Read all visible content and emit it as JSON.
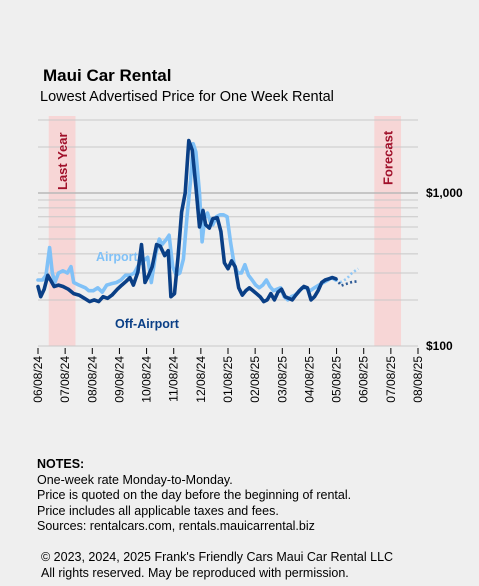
{
  "chart_data": {
    "type": "line",
    "title": "Maui Car Rental",
    "subtitle": "Lowest Advertised Price for One Week Rental",
    "y_scale": "log",
    "ylim": [
      100,
      3000
    ],
    "y_tick_labels": [
      {
        "value": 1000,
        "label": "$1,000"
      },
      {
        "value": 100,
        "label": "$100"
      }
    ],
    "x_tick_labels": [
      "06/08/24",
      "07/08/24",
      "08/08/24",
      "09/08/24",
      "10/08/24",
      "11/08/24",
      "12/08/24",
      "01/08/25",
      "02/08/25",
      "03/08/25",
      "04/08/25",
      "05/08/25",
      "06/08/25",
      "07/08/25",
      "08/08/25"
    ],
    "grid": true,
    "shaded_regions": [
      {
        "label": "Last Year",
        "start": "2024-06-20",
        "end": "2024-07-20",
        "color": "#f7d6d6"
      },
      {
        "label": "Forecast",
        "start": "2025-06-20",
        "end": "2025-07-20",
        "color": "#f7d6d6"
      }
    ],
    "series": [
      {
        "name": "Airport",
        "color": "#80c1f7",
        "points": [
          [
            "2024-06-08",
            270
          ],
          [
            "2024-06-13",
            270
          ],
          [
            "2024-06-17",
            290
          ],
          [
            "2024-06-21",
            440
          ],
          [
            "2024-06-24",
            300
          ],
          [
            "2024-06-27",
            260
          ],
          [
            "2024-07-01",
            300
          ],
          [
            "2024-07-06",
            310
          ],
          [
            "2024-07-11",
            300
          ],
          [
            "2024-07-15",
            330
          ],
          [
            "2024-07-18",
            260
          ],
          [
            "2024-07-24",
            250
          ],
          [
            "2024-07-31",
            240
          ],
          [
            "2024-08-04",
            230
          ],
          [
            "2024-08-09",
            230
          ],
          [
            "2024-08-14",
            240
          ],
          [
            "2024-08-19",
            225
          ],
          [
            "2024-08-24",
            250
          ],
          [
            "2024-08-29",
            255
          ],
          [
            "2024-09-04",
            260
          ],
          [
            "2024-09-09",
            270
          ],
          [
            "2024-09-14",
            290
          ],
          [
            "2024-09-19",
            290
          ],
          [
            "2024-09-24",
            300
          ],
          [
            "2024-09-29",
            340
          ],
          [
            "2024-10-04",
            360
          ],
          [
            "2024-10-09",
            380
          ],
          [
            "2024-10-13",
            260
          ],
          [
            "2024-10-18",
            400
          ],
          [
            "2024-10-22",
            500
          ],
          [
            "2024-10-25",
            460
          ],
          [
            "2024-10-30",
            500
          ],
          [
            "2024-11-02",
            530
          ],
          [
            "2024-11-06",
            330
          ],
          [
            "2024-11-10",
            290
          ],
          [
            "2024-11-14",
            300
          ],
          [
            "2024-11-18",
            370
          ],
          [
            "2024-11-22",
            700
          ],
          [
            "2024-11-26",
            1200
          ],
          [
            "2024-11-29",
            2100
          ],
          [
            "2024-12-02",
            1850
          ],
          [
            "2024-12-06",
            1000
          ],
          [
            "2024-12-09",
            480
          ],
          [
            "2024-12-12",
            690
          ],
          [
            "2024-12-15",
            740
          ],
          [
            "2024-12-18",
            650
          ],
          [
            "2024-12-21",
            620
          ],
          [
            "2024-12-25",
            700
          ],
          [
            "2024-12-29",
            720
          ],
          [
            "2025-01-02",
            720
          ],
          [
            "2025-01-06",
            700
          ],
          [
            "2025-01-10",
            470
          ],
          [
            "2025-01-14",
            340
          ],
          [
            "2025-01-18",
            300
          ],
          [
            "2025-01-22",
            300
          ],
          [
            "2025-01-26",
            340
          ],
          [
            "2025-01-30",
            290
          ],
          [
            "2025-02-03",
            270
          ],
          [
            "2025-02-07",
            250
          ],
          [
            "2025-02-11",
            240
          ],
          [
            "2025-02-15",
            250
          ],
          [
            "2025-02-19",
            270
          ],
          [
            "2025-02-23",
            245
          ],
          [
            "2025-02-27",
            230
          ],
          [
            "2025-03-03",
            235
          ],
          [
            "2025-03-07",
            240
          ],
          [
            "2025-03-11",
            210
          ],
          [
            "2025-03-15",
            200
          ],
          [
            "2025-03-19",
            210
          ],
          [
            "2025-03-23",
            215
          ],
          [
            "2025-03-27",
            225
          ],
          [
            "2025-03-31",
            240
          ],
          [
            "2025-04-04",
            240
          ],
          [
            "2025-04-09",
            230
          ],
          [
            "2025-04-14",
            240
          ],
          [
            "2025-04-19",
            250
          ],
          [
            "2025-04-24",
            260
          ],
          [
            "2025-04-29",
            270
          ],
          [
            "2025-05-03",
            280
          ],
          [
            "2025-05-08",
            270
          ]
        ],
        "forecast": [
          [
            "2025-05-08",
            270
          ],
          [
            "2025-05-14",
            262
          ],
          [
            "2025-05-20",
            275
          ],
          [
            "2025-05-26",
            300
          ],
          [
            "2025-06-02",
            320
          ]
        ]
      },
      {
        "name": "Off-Airport",
        "color": "#0a3f86",
        "points": [
          [
            "2024-06-08",
            245
          ],
          [
            "2024-06-11",
            210
          ],
          [
            "2024-06-15",
            235
          ],
          [
            "2024-06-19",
            290
          ],
          [
            "2024-06-22",
            270
          ],
          [
            "2024-06-26",
            245
          ],
          [
            "2024-07-01",
            250
          ],
          [
            "2024-07-06",
            245
          ],
          [
            "2024-07-12",
            235
          ],
          [
            "2024-07-18",
            220
          ],
          [
            "2024-07-24",
            215
          ],
          [
            "2024-07-30",
            205
          ],
          [
            "2024-08-05",
            195
          ],
          [
            "2024-08-10",
            200
          ],
          [
            "2024-08-15",
            195
          ],
          [
            "2024-08-20",
            210
          ],
          [
            "2024-08-25",
            205
          ],
          [
            "2024-08-30",
            215
          ],
          [
            "2024-09-05",
            235
          ],
          [
            "2024-09-10",
            250
          ],
          [
            "2024-09-15",
            265
          ],
          [
            "2024-09-19",
            280
          ],
          [
            "2024-09-23",
            250
          ],
          [
            "2024-09-28",
            305
          ],
          [
            "2024-10-02",
            460
          ],
          [
            "2024-10-06",
            260
          ],
          [
            "2024-10-10",
            290
          ],
          [
            "2024-10-14",
            330
          ],
          [
            "2024-10-19",
            460
          ],
          [
            "2024-10-23",
            450
          ],
          [
            "2024-10-28",
            390
          ],
          [
            "2024-11-01",
            420
          ],
          [
            "2024-11-04",
            210
          ],
          [
            "2024-11-08",
            220
          ],
          [
            "2024-11-12",
            380
          ],
          [
            "2024-11-16",
            750
          ],
          [
            "2024-11-20",
            1000
          ],
          [
            "2024-11-24",
            2200
          ],
          [
            "2024-11-28",
            1900
          ],
          [
            "2024-12-02",
            1100
          ],
          [
            "2024-12-06",
            600
          ],
          [
            "2024-12-10",
            770
          ],
          [
            "2024-12-13",
            620
          ],
          [
            "2024-12-17",
            590
          ],
          [
            "2024-12-21",
            680
          ],
          [
            "2024-12-26",
            690
          ],
          [
            "2024-12-30",
            560
          ],
          [
            "2025-01-03",
            350
          ],
          [
            "2025-01-07",
            320
          ],
          [
            "2025-01-11",
            360
          ],
          [
            "2025-01-15",
            330
          ],
          [
            "2025-01-19",
            240
          ],
          [
            "2025-01-23",
            215
          ],
          [
            "2025-01-27",
            230
          ],
          [
            "2025-01-31",
            240
          ],
          [
            "2025-02-04",
            230
          ],
          [
            "2025-02-08",
            220
          ],
          [
            "2025-02-12",
            210
          ],
          [
            "2025-02-16",
            195
          ],
          [
            "2025-02-20",
            200
          ],
          [
            "2025-02-24",
            220
          ],
          [
            "2025-02-28",
            200
          ],
          [
            "2025-03-04",
            225
          ],
          [
            "2025-03-08",
            235
          ],
          [
            "2025-03-12",
            210
          ],
          [
            "2025-03-16",
            205
          ],
          [
            "2025-03-20",
            200
          ],
          [
            "2025-03-24",
            215
          ],
          [
            "2025-03-28",
            230
          ],
          [
            "2025-04-02",
            245
          ],
          [
            "2025-04-06",
            240
          ],
          [
            "2025-04-10",
            200
          ],
          [
            "2025-04-14",
            210
          ],
          [
            "2025-04-18",
            230
          ],
          [
            "2025-04-22",
            260
          ],
          [
            "2025-04-26",
            270
          ],
          [
            "2025-04-30",
            275
          ],
          [
            "2025-05-04",
            280
          ],
          [
            "2025-05-08",
            275
          ]
        ],
        "forecast": [
          [
            "2025-05-08",
            275
          ],
          [
            "2025-05-14",
            248
          ],
          [
            "2025-05-20",
            255
          ],
          [
            "2025-05-26",
            262
          ],
          [
            "2025-06-02",
            265
          ]
        ]
      }
    ],
    "annotations": [
      {
        "text": "Airport",
        "series": "Airport"
      },
      {
        "text": "Off-Airport",
        "series": "Off-Airport"
      }
    ]
  },
  "notes": {
    "heading": "NOTES:",
    "lines": [
      "One-week rate Monday-to-Monday.",
      "Price is quoted on the day before the beginning of rental.",
      "Price includes all applicable taxes and fees.",
      "Sources:  rentalcars.com, rentals.mauicarrental.biz"
    ]
  },
  "copyright": {
    "line1": "© 2023, 2024, 2025  Frank's Friendly Cars Maui Car Rental LLC",
    "line2": "All rights reserved. May be reproduced with permission."
  }
}
